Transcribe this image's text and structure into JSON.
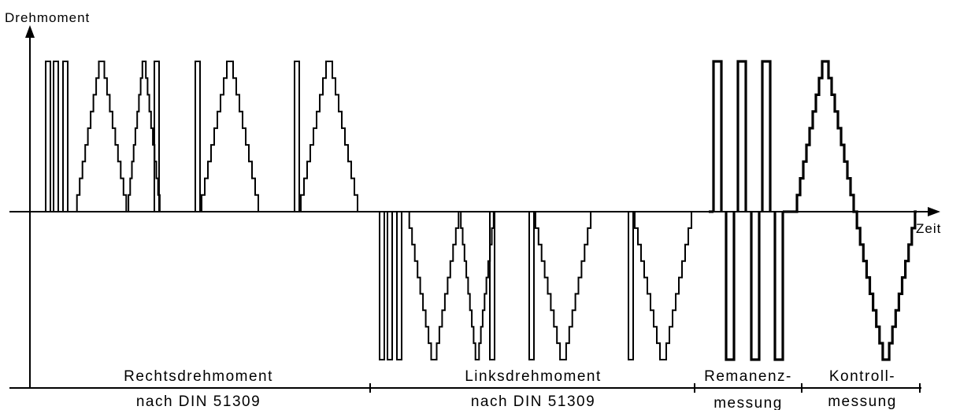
{
  "axes": {
    "y_label": "Drehmoment",
    "x_label": "Zeit"
  },
  "sections": [
    {
      "line1": "Rechtsdrehmoment",
      "line2": "nach DIN 51309"
    },
    {
      "line1": "Linksdrehmoment",
      "line2": "nach DIN 51309"
    },
    {
      "line1": "Remanenz-",
      "line2": "messung"
    },
    {
      "line1": "Kontroll-",
      "line2": "messung"
    }
  ]
}
